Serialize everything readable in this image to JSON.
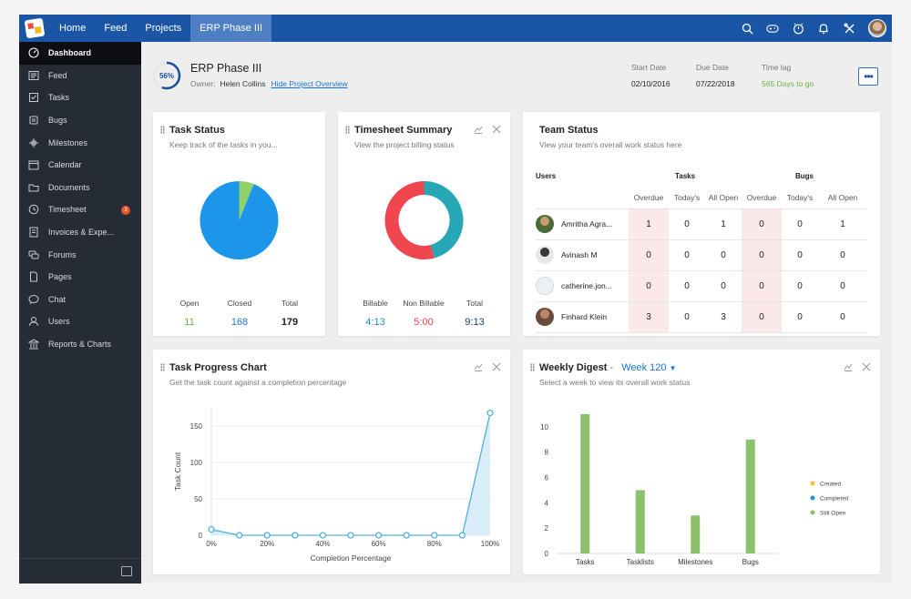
{
  "nav": {
    "items": [
      {
        "label": "Home"
      },
      {
        "label": "Feed"
      },
      {
        "label": "Projects"
      },
      {
        "label": "ERP Phase III"
      }
    ],
    "active_index": 3,
    "icons": [
      "search-icon",
      "gamepad-icon",
      "timer-icon",
      "bell-icon",
      "tools-icon",
      "user-avatar"
    ]
  },
  "sidebar": {
    "items": [
      {
        "label": "Dashboard",
        "icon": "dashboard-icon"
      },
      {
        "label": "Feed",
        "icon": "feed-icon"
      },
      {
        "label": "Tasks",
        "icon": "tasks-icon"
      },
      {
        "label": "Bugs",
        "icon": "bug-icon"
      },
      {
        "label": "Milestones",
        "icon": "milestone-icon"
      },
      {
        "label": "Calendar",
        "icon": "calendar-icon"
      },
      {
        "label": "Documents",
        "icon": "documents-icon"
      },
      {
        "label": "Timesheet",
        "icon": "timesheet-icon",
        "badge": "3"
      },
      {
        "label": "Invoices & Expe...",
        "icon": "invoice-icon"
      },
      {
        "label": "Forums",
        "icon": "forums-icon"
      },
      {
        "label": "Pages",
        "icon": "pages-icon"
      },
      {
        "label": "Chat",
        "icon": "chat-icon"
      },
      {
        "label": "Users",
        "icon": "users-icon"
      },
      {
        "label": "Reports & Charts",
        "icon": "reports-icon"
      }
    ],
    "active_index": 0
  },
  "project": {
    "progress": "56%",
    "progress_value": 56,
    "title": "ERP Phase III",
    "owner_label": "Owner:",
    "owner": "Helen Collins",
    "hide_link": "Hide Project Overview",
    "start_label": "Start Date",
    "start": "02/10/2016",
    "due_label": "Due Date",
    "due": "07/22/2018",
    "lag_label": "Time lag",
    "lag": "565 Days to go",
    "more": "•••"
  },
  "task_status": {
    "title": "Task Status",
    "subtitle": "Keep track of the tasks in you...",
    "stats": [
      {
        "label": "Open",
        "value": "11",
        "color": "#6db33f"
      },
      {
        "label": "Closed",
        "value": "168",
        "color": "#1b74d6"
      },
      {
        "label": "Total",
        "value": "179",
        "color": "#222222"
      }
    ]
  },
  "timesheet": {
    "title": "Timesheet Summary",
    "subtitle": "View the project billing status",
    "stats": [
      {
        "label": "Billable",
        "value": "4:13",
        "color": "#1f8fb5"
      },
      {
        "label": "Non Billable",
        "value": "5:00",
        "color": "#e8424c"
      },
      {
        "label": "Total",
        "value": "9:13",
        "color": "#1b3f7a"
      }
    ]
  },
  "team_status": {
    "title": "Team Status",
    "subtitle": "View your team's overall work status here",
    "group_headers": {
      "users": "Users",
      "tasks": "Tasks",
      "bugs": "Bugs"
    },
    "columns": [
      "Overdue",
      "Today's",
      "All Open",
      "Overdue",
      "Today's",
      "All Open"
    ],
    "rows": [
      {
        "name": "Amritha Agra...",
        "values": [
          "1",
          "0",
          "1",
          "0",
          "0",
          "1"
        ]
      },
      {
        "name": "Avinash M",
        "values": [
          "0",
          "0",
          "0",
          "0",
          "0",
          "0"
        ]
      },
      {
        "name": "catherine.jon...",
        "values": [
          "0",
          "0",
          "0",
          "0",
          "0",
          "0"
        ]
      },
      {
        "name": "Finhard Klein",
        "values": [
          "3",
          "0",
          "3",
          "0",
          "0",
          "0"
        ]
      }
    ]
  },
  "task_progress": {
    "title": "Task Progress Chart",
    "subtitle": "Get the task count against a completion percentage"
  },
  "weekly_digest": {
    "title": "Weekly Digest",
    "week": "Week 120",
    "subtitle": "Select a week to view its overall work status"
  },
  "chart_data": [
    {
      "type": "pie",
      "title": "Task Status",
      "categories": [
        "Open",
        "Closed"
      ],
      "values": [
        11,
        168
      ],
      "colors": [
        "#8fd16a",
        "#1c96e8"
      ]
    },
    {
      "type": "pie",
      "title": "Timesheet Summary",
      "categories": [
        "Billable",
        "Non Billable"
      ],
      "values": [
        253,
        300
      ],
      "colors": [
        "#27a6b5",
        "#ef4650"
      ]
    },
    {
      "type": "area",
      "title": "Task Progress Chart",
      "xlabel": "Completion Percentage",
      "ylabel": "Task Count",
      "x": [
        0,
        10,
        20,
        30,
        40,
        50,
        60,
        70,
        80,
        90,
        100
      ],
      "x_ticks": [
        "0%",
        "20%",
        "40%",
        "60%",
        "80%",
        "100%"
      ],
      "y": [
        8,
        0,
        0,
        0,
        0,
        0,
        0,
        0,
        0,
        0,
        168
      ],
      "y_ticks": [
        0,
        50,
        100,
        150
      ],
      "ylim": [
        0,
        175
      ],
      "grid": true,
      "color": "#4fb1e0"
    },
    {
      "type": "bar",
      "title": "Weekly Digest",
      "categories": [
        "Tasks",
        "Tasklists",
        "Milestones",
        "Bugs"
      ],
      "series": [
        {
          "name": "Created",
          "values": [
            0,
            0,
            0,
            0
          ],
          "color": "#f5c32c"
        },
        {
          "name": "Completed",
          "values": [
            0,
            0,
            0,
            0
          ],
          "color": "#1c96e8"
        },
        {
          "name": "Still Open",
          "values": [
            11,
            5,
            3,
            9
          ],
          "color": "#8ac16a"
        }
      ],
      "y_ticks": [
        0,
        2,
        4,
        6,
        8,
        10
      ],
      "ylim": [
        0,
        11.5
      ],
      "legend": "right"
    }
  ]
}
